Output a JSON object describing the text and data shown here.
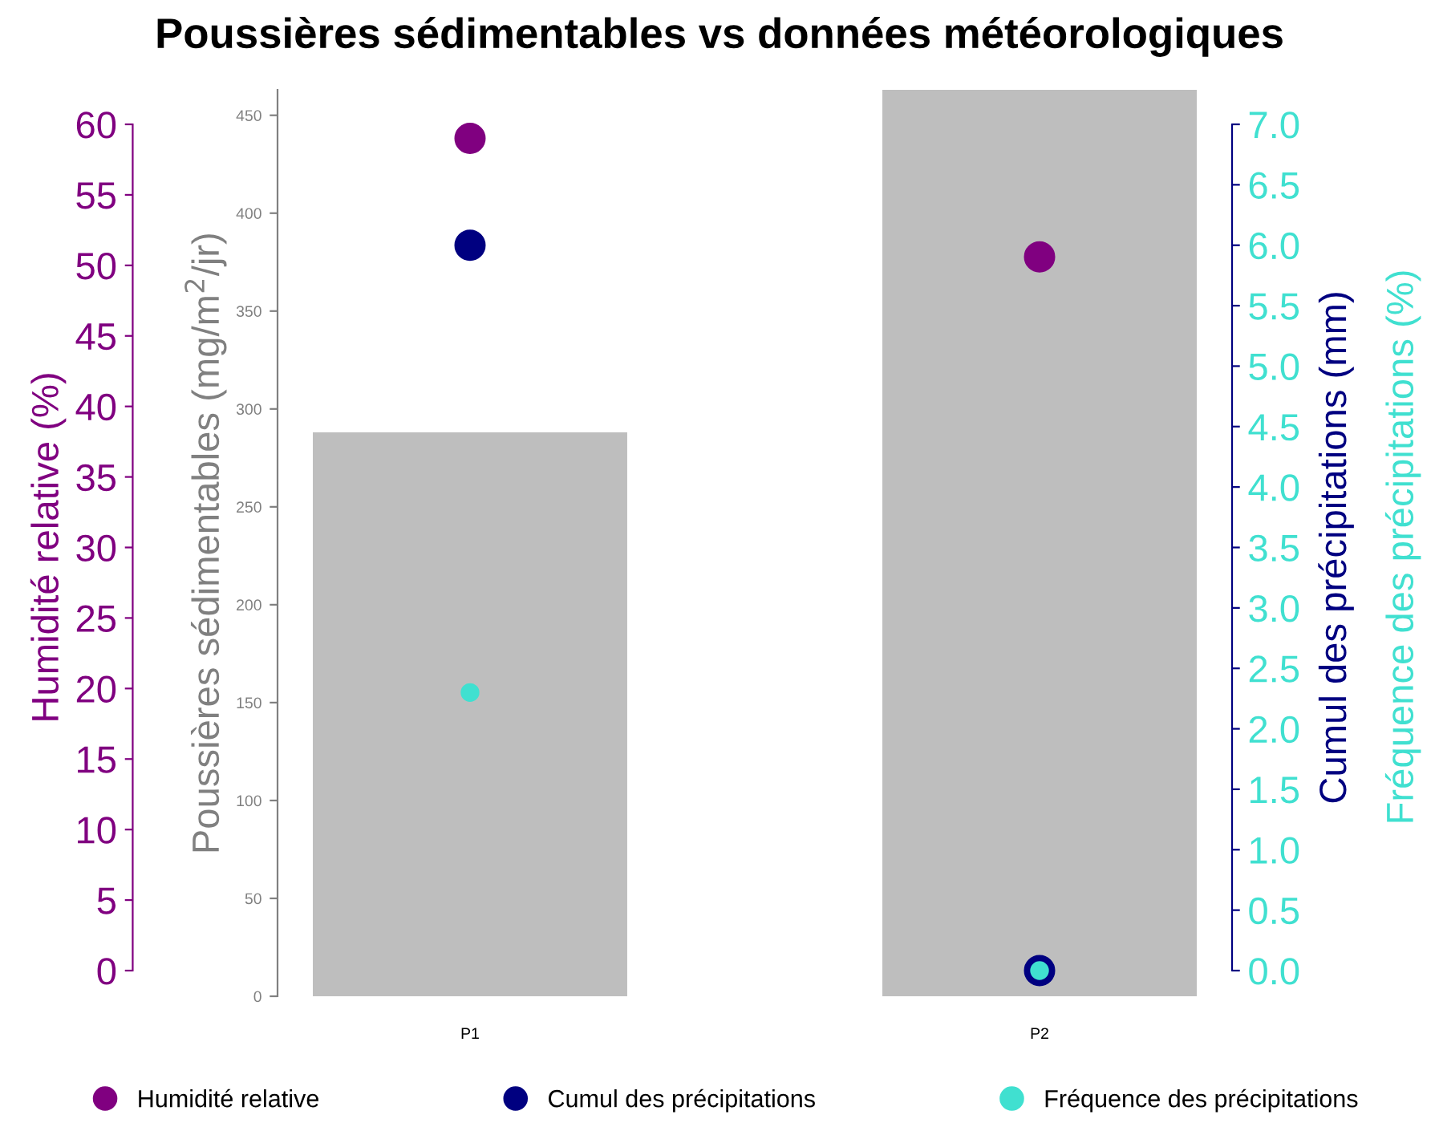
{
  "chart_data": {
    "type": "bar",
    "title": "Poussières sédimentables vs données météorologiques",
    "categories": [
      "P1",
      "P2"
    ],
    "ylabel": "Poussières sédimentables (mg/m$^{2}$/jr)",
    "ylim": [
      0,
      463
    ],
    "yticks": [
      0,
      50,
      100,
      150,
      200,
      250,
      300,
      350,
      400,
      450
    ],
    "y2label": "Humidité relative (%)",
    "y2lim": [
      0,
      60
    ],
    "y2ticks": [
      0,
      5,
      10,
      15,
      20,
      25,
      30,
      35,
      40,
      45,
      50,
      55,
      60
    ],
    "y3label": "Cumul des précipitations (mm)",
    "y3lim": [
      0,
      7
    ],
    "y3ticks": [
      {
        "value": 0,
        "label": "0.0"
      },
      0.5,
      {
        "value": 1,
        "label": "1.0"
      },
      1.5,
      {
        "value": 2,
        "label": "2.0"
      },
      2.5,
      {
        "value": 3,
        "label": "3.0"
      },
      3.5,
      {
        "value": 4,
        "label": "4.0"
      },
      4.5,
      {
        "value": 5,
        "label": "5.0"
      },
      5.5,
      {
        "value": 6,
        "label": "6.0"
      },
      6.5,
      {
        "value": 7,
        "label": "7.0"
      }
    ],
    "annotations": [
      "Fréquence des précipitations (%)"
    ],
    "series": [
      {
        "color": "#bebebe",
        "values": [
          288,
          463
        ]
      },
      {
        "type": "scatter",
        "name": "Humidité relative",
        "color": "#800080",
        "axis": "y2",
        "values": [
          59,
          50.6
        ]
      },
      {
        "type": "scatter",
        "name": "Cumul des précipitations",
        "color": "#000080",
        "axis": "y3",
        "values": [
          6.0,
          0
        ]
      },
      {
        "type": "scatter",
        "name": "Fréquence des précipitations",
        "color": "#40e0d0",
        "axis": "y3",
        "values": [
          2.3,
          0
        ]
      }
    ],
    "marker": "circle",
    "legend": "bottom",
    "grid": false
  }
}
